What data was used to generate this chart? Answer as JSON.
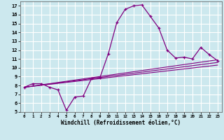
{
  "xlabel": "Windchill (Refroidissement éolien,°C)",
  "background_color": "#cce8ee",
  "grid_color": "#ffffff",
  "line_color": "#800080",
  "xlim": [
    -0.5,
    23.5
  ],
  "ylim": [
    5,
    17.5
  ],
  "xticks": [
    0,
    1,
    2,
    3,
    4,
    5,
    6,
    7,
    8,
    9,
    10,
    11,
    12,
    13,
    14,
    15,
    16,
    17,
    18,
    19,
    20,
    21,
    22,
    23
  ],
  "yticks": [
    5,
    6,
    7,
    8,
    9,
    10,
    11,
    12,
    13,
    14,
    15,
    16,
    17
  ],
  "main_x": [
    0,
    1,
    2,
    3,
    4,
    5,
    6,
    7,
    8,
    9,
    10,
    11,
    12,
    13,
    14,
    15,
    16,
    17,
    18,
    19,
    20,
    21,
    22,
    23
  ],
  "main_y": [
    7.8,
    8.2,
    8.2,
    7.8,
    7.5,
    5.2,
    6.7,
    6.8,
    8.8,
    8.9,
    11.6,
    15.1,
    16.6,
    17.0,
    17.1,
    15.8,
    14.5,
    12.0,
    11.1,
    11.2,
    11.0,
    12.3,
    11.5,
    10.8
  ],
  "line2_x": [
    0,
    23
  ],
  "line2_y": [
    7.8,
    10.9
  ],
  "line3_x": [
    0,
    23
  ],
  "line3_y": [
    7.8,
    10.3
  ],
  "line4_x": [
    0,
    23
  ],
  "line4_y": [
    7.8,
    10.6
  ]
}
